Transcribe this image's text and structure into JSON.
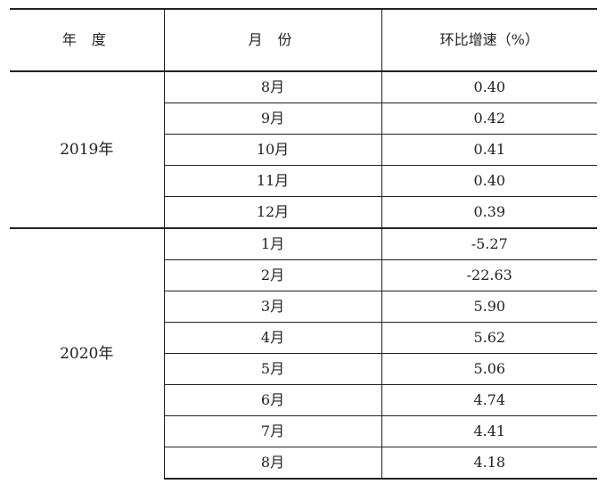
{
  "table": {
    "headers": {
      "year": "年 度",
      "month": "月 份",
      "growth": "环比增速（%）"
    },
    "groups": [
      {
        "year": "2019年",
        "rows": [
          {
            "month": "8月",
            "value": "0.40"
          },
          {
            "month": "9月",
            "value": "0.42"
          },
          {
            "month": "10月",
            "value": "0.41"
          },
          {
            "month": "11月",
            "value": "0.40"
          },
          {
            "month": "12月",
            "value": "0.39"
          }
        ]
      },
      {
        "year": "2020年",
        "rows": [
          {
            "month": "1月",
            "value": "-5.27"
          },
          {
            "month": "2月",
            "value": "-22.63"
          },
          {
            "month": "3月",
            "value": "5.90"
          },
          {
            "month": "4月",
            "value": "5.62"
          },
          {
            "month": "5月",
            "value": "5.06"
          },
          {
            "month": "6月",
            "value": "4.74"
          },
          {
            "month": "7月",
            "value": "4.41"
          },
          {
            "month": "8月",
            "value": "4.18"
          }
        ]
      }
    ]
  }
}
